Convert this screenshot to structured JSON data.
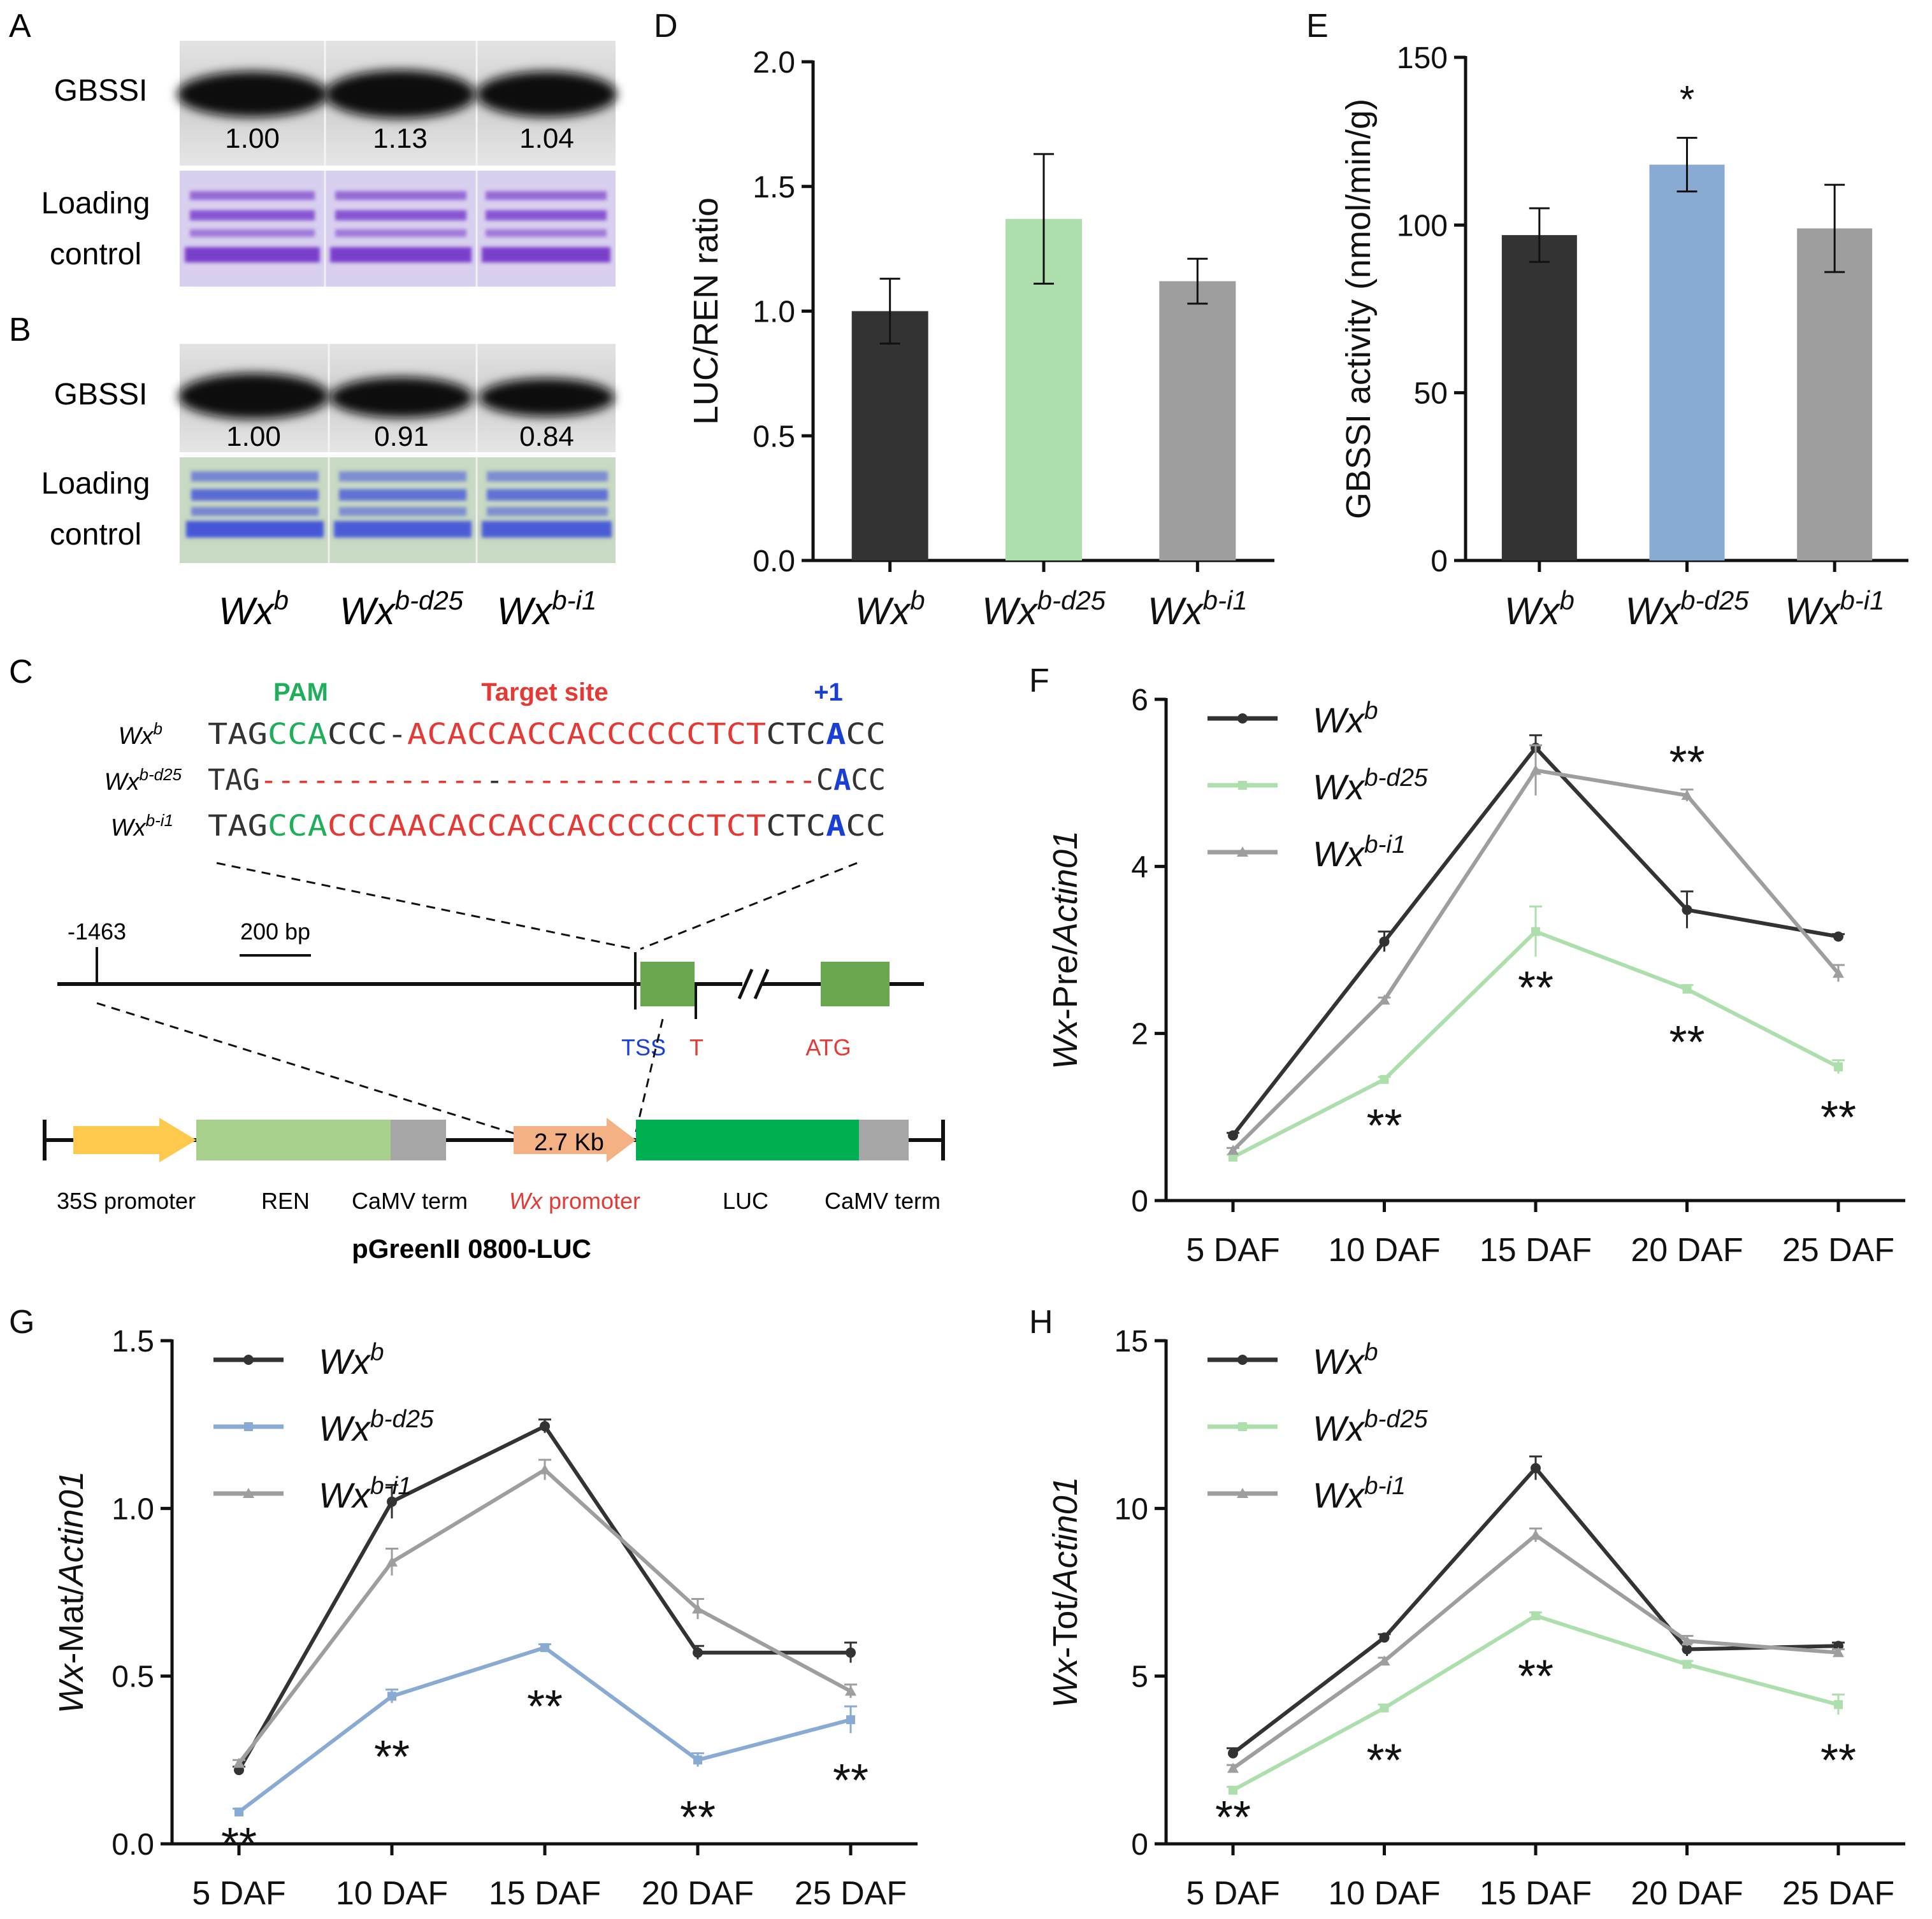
{
  "panels": {
    "A": {
      "letter": "A",
      "protein": "GBSSI",
      "loading_line1": "Loading",
      "loading_line2": "control",
      "values": [
        "1.00",
        "1.13",
        "1.04"
      ]
    },
    "B": {
      "letter": "B",
      "protein": "GBSSI",
      "loading_line1": "Loading",
      "loading_line2": "control",
      "values": [
        "1.00",
        "0.91",
        "0.84"
      ]
    },
    "C": {
      "letter": "C",
      "label_pam": "PAM",
      "label_target": "Target site",
      "label_plus1": "+1",
      "rows": [
        {
          "name_base": "Wx",
          "name_sup": "b",
          "segments": [
            [
              "TAG",
              "black"
            ],
            [
              "CCA",
              "green"
            ],
            [
              "CCC-",
              "black"
            ],
            [
              "ACACCACCACCCCCCTCT",
              "red"
            ],
            [
              "CTC",
              "black"
            ],
            [
              "A",
              "blue"
            ],
            [
              "CC",
              "black"
            ]
          ]
        },
        {
          "name_base": "Wx",
          "name_sup": "b-d25",
          "segments": [
            [
              "TAG",
              "black"
            ],
            [
              "-------------",
              "red"
            ],
            [
              "-",
              "black"
            ],
            [
              "------------------",
              "red"
            ],
            [
              "C",
              "black"
            ],
            [
              "A",
              "blue"
            ],
            [
              "CC",
              "black"
            ]
          ]
        },
        {
          "name_base": "Wx",
          "name_sup": "b-i1",
          "segments": [
            [
              "TAG",
              "black"
            ],
            [
              "CCA",
              "green"
            ],
            [
              "CCC",
              "red"
            ],
            [
              "AACACCACCACCCCCCTCT",
              "red"
            ],
            [
              "CTC",
              "black"
            ],
            [
              "A",
              "blue"
            ],
            [
              "CC",
              "black"
            ]
          ]
        }
      ],
      "gene_pos": "-1463",
      "scale_bar": "200 bp",
      "tss": "TSS",
      "t": "T",
      "atg": "ATG",
      "promoter_box": "2.7 Kb",
      "construct_labels": {
        "p35s": "35S promoter",
        "ren": "REN",
        "term1": "CaMV term",
        "wx_base": "Wx",
        "wx_rest": " promoter",
        "luc": "LUC",
        "term2": "CaMV term"
      },
      "vector": "pGreenII 0800-LUC"
    },
    "G_letter": "G",
    "H_letter": "H"
  },
  "genotypes": [
    {
      "base": "Wx",
      "sup": "b"
    },
    {
      "base": "Wx",
      "sup": "b-d25"
    },
    {
      "base": "Wx",
      "sup": "b-i1"
    }
  ],
  "colors": {
    "black": "#333333",
    "green": "#addfad",
    "blue": "#89abd3",
    "grey": "#9e9e9e",
    "seq_green": "#1fae5a",
    "seq_red": "#e53935",
    "seq_blue": "#1a3fd6",
    "box_green": "#6aa84f",
    "box_lgreen": "#a8d08d",
    "box_luc": "#00b050",
    "box_yellow": "#ffc94d",
    "box_orange": "#f4b183",
    "box_grey": "#a6a6a6"
  },
  "chart_data": [
    {
      "id": "D",
      "type": "bar",
      "letter": "D",
      "title": "",
      "ylabel": "LUC/REN ratio",
      "ylim": [
        0,
        2.0
      ],
      "yticks": [
        0.0,
        0.5,
        1.0,
        1.5,
        2.0
      ],
      "ytick_labels": [
        "0.0",
        "0.5",
        "1.0",
        "1.5",
        "2.0"
      ],
      "categories": [
        "Wx^b",
        "Wx^b-d25",
        "Wx^b-i1"
      ],
      "values": [
        1.0,
        1.37,
        1.12
      ],
      "errors": [
        0.13,
        0.26,
        0.09
      ],
      "bar_colors": [
        "#333333",
        "#addfad",
        "#9e9e9e"
      ],
      "significance": [
        "",
        "",
        ""
      ]
    },
    {
      "id": "E",
      "type": "bar",
      "letter": "E",
      "title": "",
      "ylabel": "GBSSI activity (nmol/min/g)",
      "ylim": [
        0,
        150
      ],
      "yticks": [
        0,
        50,
        100,
        150
      ],
      "ytick_labels": [
        "0",
        "50",
        "100",
        "150"
      ],
      "categories": [
        "Wx^b",
        "Wx^b-d25",
        "Wx^b-i1"
      ],
      "values": [
        97,
        118,
        99
      ],
      "errors": [
        8,
        8,
        13
      ],
      "bar_colors": [
        "#333333",
        "#89abd3",
        "#9e9e9e"
      ],
      "significance": [
        "",
        "*",
        ""
      ]
    },
    {
      "id": "F",
      "type": "line",
      "letter": "F",
      "ylabel_italic": "Wx",
      "ylabel_mid": "-Pre/",
      "ylabel_italic2": "Actin01",
      "ylim": [
        0,
        6
      ],
      "yticks": [
        0,
        2,
        4,
        6
      ],
      "ytick_labels": [
        "0",
        "2",
        "4",
        "6"
      ],
      "x": [
        "5 DAF",
        "10 DAF",
        "15 DAF",
        "20 DAF",
        "25 DAF"
      ],
      "series": [
        {
          "name": "Wx^b",
          "color": "#333333",
          "marker": "circle",
          "values": [
            0.78,
            3.1,
            5.42,
            3.48,
            3.16
          ],
          "errors": [
            0.03,
            0.12,
            0.15,
            0.22,
            0.03
          ]
        },
        {
          "name": "Wx^b-d25",
          "color": "#addfad",
          "marker": "square",
          "values": [
            0.52,
            1.45,
            3.22,
            2.53,
            1.6
          ],
          "errors": [
            0.03,
            0.03,
            0.3,
            0.05,
            0.08
          ]
        },
        {
          "name": "Wx^b-i1",
          "color": "#9e9e9e",
          "marker": "triangle",
          "values": [
            0.6,
            2.4,
            5.15,
            4.85,
            2.72
          ],
          "errors": [
            0.03,
            0.03,
            0.3,
            0.07,
            0.1
          ]
        }
      ],
      "annotations": [
        {
          "x": "10 DAF",
          "y": 0.9,
          "text": "**"
        },
        {
          "x": "15 DAF",
          "y": 2.55,
          "text": "**"
        },
        {
          "x": "20 DAF",
          "y": 5.25,
          "text": "**"
        },
        {
          "x": "20 DAF",
          "y": 1.9,
          "text": "**"
        },
        {
          "x": "25 DAF",
          "y": 1.0,
          "text": "**"
        }
      ]
    },
    {
      "id": "G",
      "type": "line",
      "letter": "G",
      "ylabel_italic": "Wx",
      "ylabel_mid": "-Mat/",
      "ylabel_italic2": "Actin01",
      "ylim": [
        0,
        1.5
      ],
      "yticks": [
        0.0,
        0.5,
        1.0,
        1.5
      ],
      "ytick_labels": [
        "0.0",
        "0.5",
        "1.0",
        "1.5"
      ],
      "x": [
        "5 DAF",
        "10 DAF",
        "15 DAF",
        "20 DAF",
        "25 DAF"
      ],
      "series": [
        {
          "name": "Wx^b",
          "color": "#333333",
          "marker": "circle",
          "values": [
            0.22,
            1.02,
            1.245,
            0.57,
            0.57
          ],
          "errors": [
            0.01,
            0.05,
            0.02,
            0.02,
            0.03
          ]
        },
        {
          "name": "Wx^b-d25",
          "color": "#89abd3",
          "marker": "square",
          "values": [
            0.095,
            0.44,
            0.585,
            0.25,
            0.37
          ],
          "errors": [
            0.01,
            0.02,
            0.01,
            0.02,
            0.04
          ]
        },
        {
          "name": "Wx^b-i1",
          "color": "#9e9e9e",
          "marker": "triangle",
          "values": [
            0.24,
            0.84,
            1.115,
            0.7,
            0.455
          ],
          "errors": [
            0.01,
            0.04,
            0.03,
            0.03,
            0.02
          ]
        }
      ],
      "annotations": [
        {
          "x": "5 DAF",
          "y": 0.0,
          "text": "**"
        },
        {
          "x": "10 DAF",
          "y": 0.26,
          "text": "**"
        },
        {
          "x": "15 DAF",
          "y": 0.41,
          "text": "**"
        },
        {
          "x": "20 DAF",
          "y": 0.08,
          "text": "**"
        },
        {
          "x": "25 DAF",
          "y": 0.19,
          "text": "**"
        }
      ]
    },
    {
      "id": "H",
      "type": "line",
      "letter": "H",
      "ylabel_italic": "Wx",
      "ylabel_mid": "-Tot/",
      "ylabel_italic2": "Actin01",
      "ylim": [
        0,
        15
      ],
      "yticks": [
        0,
        5,
        10,
        15
      ],
      "ytick_labels": [
        "0",
        "5",
        "10",
        "15"
      ],
      "x": [
        "5 DAF",
        "10 DAF",
        "15 DAF",
        "20 DAF",
        "25 DAF"
      ],
      "series": [
        {
          "name": "Wx^b",
          "color": "#333333",
          "marker": "circle",
          "values": [
            2.7,
            6.15,
            11.2,
            5.8,
            5.9
          ],
          "errors": [
            0.15,
            0.1,
            0.35,
            0.2,
            0.1
          ]
        },
        {
          "name": "Wx^b-d25",
          "color": "#addfad",
          "marker": "square",
          "values": [
            1.6,
            4.05,
            6.8,
            5.35,
            4.15
          ],
          "errors": [
            0.1,
            0.1,
            0.1,
            0.1,
            0.3
          ]
        },
        {
          "name": "Wx^b-i1",
          "color": "#9e9e9e",
          "marker": "triangle",
          "values": [
            2.25,
            5.45,
            9.2,
            6.05,
            5.7
          ],
          "errors": [
            0.1,
            0.1,
            0.2,
            0.15,
            0.1
          ]
        }
      ],
      "annotations": [
        {
          "x": "5 DAF",
          "y": 0.8,
          "text": "**"
        },
        {
          "x": "10 DAF",
          "y": 2.5,
          "text": "**"
        },
        {
          "x": "15 DAF",
          "y": 5.0,
          "text": "**"
        },
        {
          "x": "25 DAF",
          "y": 2.5,
          "text": "**"
        }
      ]
    }
  ]
}
